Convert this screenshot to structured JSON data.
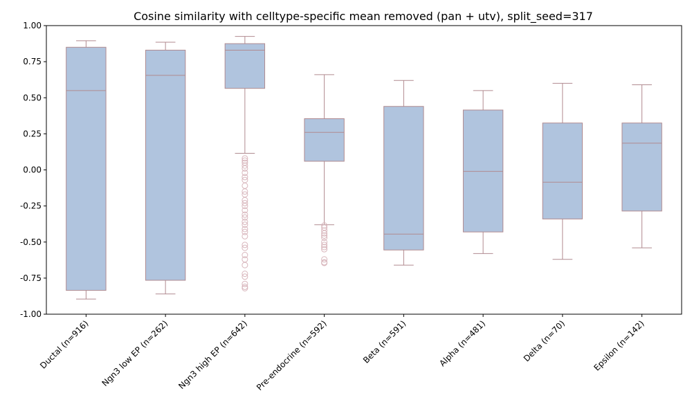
{
  "chart_data": {
    "type": "box",
    "title": "Cosine similarity with celltype-specific mean removed (pan + utv), split_seed=317",
    "xlabel": "",
    "ylabel": "",
    "ylim": [
      -1.0,
      1.0
    ],
    "yticks": [
      "-1.00",
      "-0.75",
      "-0.50",
      "-0.25",
      "0.00",
      "0.25",
      "0.50",
      "0.75",
      "1.00"
    ],
    "grid": false,
    "box_fill": "#b0c4de",
    "box_edge": "#b08a8f",
    "categories": [
      "Ductal (n=916)",
      "Ngn3 low EP (n=262)",
      "Ngn3 high EP (n=642)",
      "Pre-endocrine (n=592)",
      "Beta (n=591)",
      "Alpha (n=481)",
      "Delta (n=70)",
      "Epsilon (n=142)"
    ],
    "boxes": [
      {
        "whislo": -0.895,
        "q1": -0.835,
        "med": 0.55,
        "q3": 0.85,
        "whishi": 0.895,
        "fliers": []
      },
      {
        "whislo": -0.86,
        "q1": -0.765,
        "med": 0.655,
        "q3": 0.83,
        "whishi": 0.885,
        "fliers": []
      },
      {
        "whislo": 0.115,
        "q1": 0.565,
        "med": 0.83,
        "q3": 0.875,
        "whishi": 0.925,
        "fliers": [
          0.08,
          0.065,
          0.05,
          0.03,
          0.01,
          -0.02,
          -0.05,
          -0.07,
          -0.11,
          -0.15,
          -0.17,
          -0.21,
          -0.23,
          -0.25,
          -0.28,
          -0.31,
          -0.33,
          -0.36,
          -0.38,
          -0.41,
          -0.43,
          -0.46,
          -0.52,
          -0.54,
          -0.59,
          -0.62,
          -0.66,
          -0.72,
          -0.74,
          -0.79,
          -0.81,
          -0.82
        ]
      },
      {
        "whislo": -0.38,
        "q1": 0.06,
        "med": 0.26,
        "q3": 0.355,
        "whishi": 0.66,
        "fliers": [
          -0.385,
          -0.4,
          -0.42,
          -0.44,
          -0.455,
          -0.47,
          -0.5,
          -0.52,
          -0.535,
          -0.55,
          -0.62,
          -0.64,
          -0.645
        ]
      },
      {
        "whislo": -0.66,
        "q1": -0.555,
        "med": -0.445,
        "q3": 0.44,
        "whishi": 0.62,
        "fliers": []
      },
      {
        "whislo": -0.58,
        "q1": -0.43,
        "med": -0.01,
        "q3": 0.415,
        "whishi": 0.55,
        "fliers": []
      },
      {
        "whislo": -0.62,
        "q1": -0.34,
        "med": -0.085,
        "q3": 0.325,
        "whishi": 0.6,
        "fliers": []
      },
      {
        "whislo": -0.54,
        "q1": -0.285,
        "med": 0.185,
        "q3": 0.325,
        "whishi": 0.59,
        "fliers": []
      }
    ]
  }
}
